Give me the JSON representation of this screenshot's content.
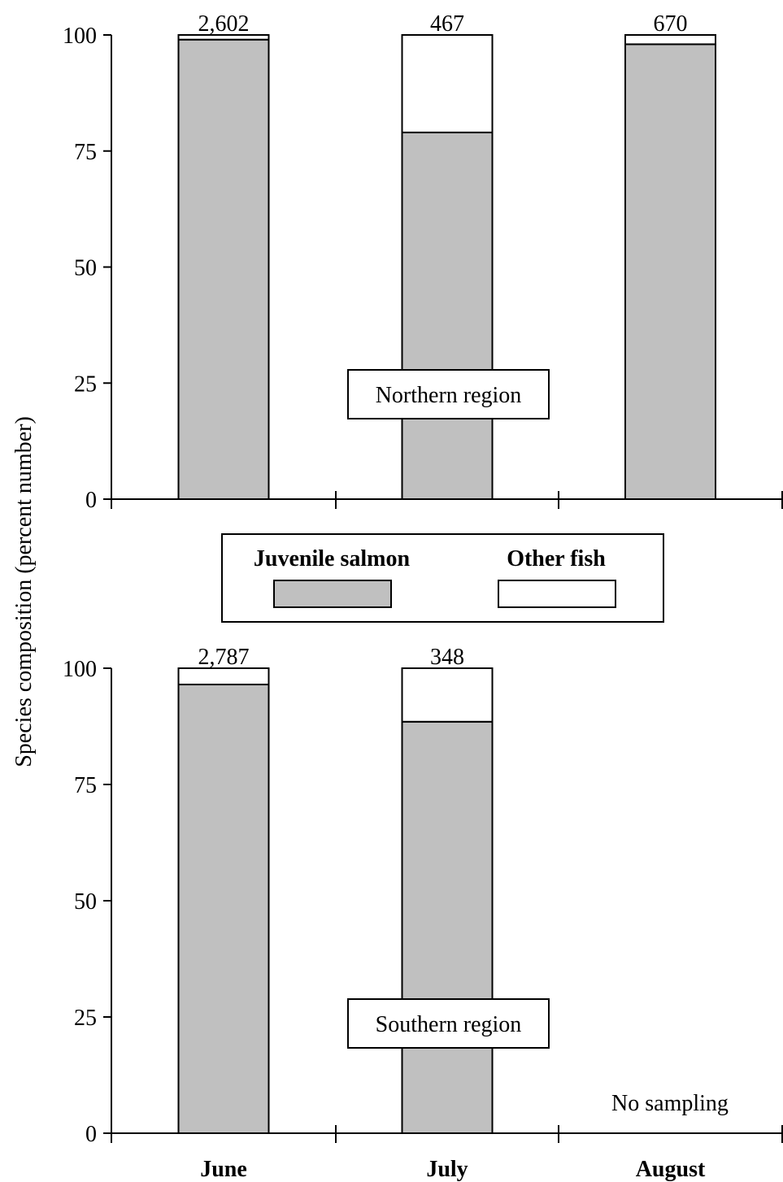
{
  "colors": {
    "salmon": "#c0c0c0",
    "other": "#ffffff",
    "stroke": "#000000"
  },
  "ylabel": "Species composition (percent number)",
  "legend": {
    "salmon_label": "Juvenile salmon",
    "other_label": "Other fish"
  },
  "chart_data": [
    {
      "type": "bar",
      "stacked": true,
      "region_label": "Northern region",
      "categories": [
        "June",
        "July",
        "August"
      ],
      "ylim": [
        0,
        100
      ],
      "yticks": [
        "0",
        "25",
        "50",
        "75",
        "100"
      ],
      "series": [
        {
          "name": "Juvenile salmon",
          "values": [
            99,
            79,
            98
          ]
        },
        {
          "name": "Other fish",
          "values": [
            1,
            21,
            2
          ]
        }
      ],
      "counts": [
        "2,602",
        "467",
        "670"
      ],
      "show_category_labels": false,
      "note": ""
    },
    {
      "type": "bar",
      "stacked": true,
      "region_label": "Southern region",
      "categories": [
        "June",
        "July",
        "August"
      ],
      "ylim": [
        0,
        100
      ],
      "yticks": [
        "0",
        "25",
        "50",
        "75",
        "100"
      ],
      "series": [
        {
          "name": "Juvenile salmon",
          "values": [
            96.5,
            88.5,
            null
          ]
        },
        {
          "name": "Other fish",
          "values": [
            3.5,
            11.5,
            null
          ]
        }
      ],
      "counts": [
        "2,787",
        "348",
        ""
      ],
      "show_category_labels": true,
      "note": "No sampling"
    }
  ]
}
